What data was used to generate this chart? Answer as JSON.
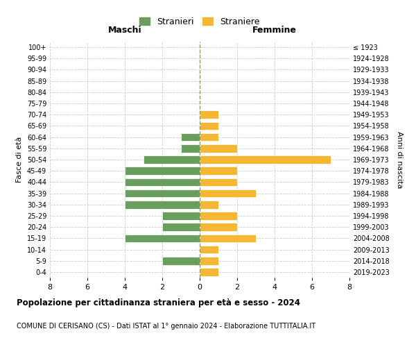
{
  "age_groups": [
    "0-4",
    "5-9",
    "10-14",
    "15-19",
    "20-24",
    "25-29",
    "30-34",
    "35-39",
    "40-44",
    "45-49",
    "50-54",
    "55-59",
    "60-64",
    "65-69",
    "70-74",
    "75-79",
    "80-84",
    "85-89",
    "90-94",
    "95-99",
    "100+"
  ],
  "birth_years": [
    "2019-2023",
    "2014-2018",
    "2009-2013",
    "2004-2008",
    "1999-2003",
    "1994-1998",
    "1989-1993",
    "1984-1988",
    "1979-1983",
    "1974-1978",
    "1969-1973",
    "1964-1968",
    "1959-1963",
    "1954-1958",
    "1949-1953",
    "1944-1948",
    "1939-1943",
    "1934-1938",
    "1929-1933",
    "1924-1928",
    "≤ 1923"
  ],
  "males": [
    0,
    2,
    0,
    4,
    2,
    2,
    4,
    4,
    4,
    4,
    3,
    1,
    1,
    0,
    0,
    0,
    0,
    0,
    0,
    0,
    0
  ],
  "females": [
    1,
    1,
    1,
    3,
    2,
    2,
    1,
    3,
    2,
    2,
    7,
    2,
    1,
    1,
    1,
    0,
    0,
    0,
    0,
    0,
    0
  ],
  "male_color": "#6a9e5f",
  "female_color": "#f5b731",
  "background_color": "#ffffff",
  "grid_color": "#cccccc",
  "title": "Popolazione per cittadinanza straniera per età e sesso - 2024",
  "subtitle": "COMUNE DI CERISANO (CS) - Dati ISTAT al 1° gennaio 2024 - Elaborazione TUTTITALIA.IT",
  "ylabel_left": "Fasce di età",
  "ylabel_right": "Anni di nascita",
  "xlabel_left": "Maschi",
  "xlabel_right": "Femmine",
  "legend_male": "Stranieri",
  "legend_female": "Straniere",
  "xlim": 8
}
